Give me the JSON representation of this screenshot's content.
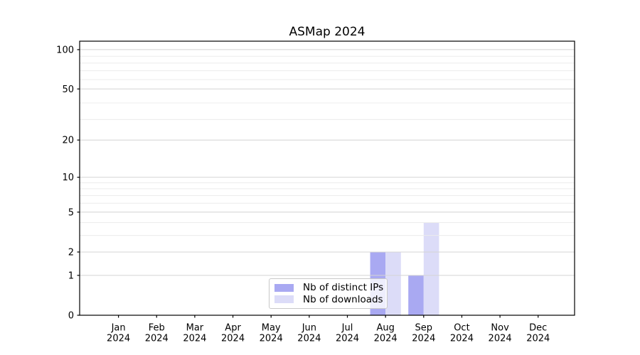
{
  "chart_data": {
    "type": "bar",
    "title": "ASMap 2024",
    "categories": [
      "Jan",
      "Feb",
      "Mar",
      "Apr",
      "May",
      "Jun",
      "Jul",
      "Aug",
      "Sep",
      "Oct",
      "Nov",
      "Dec"
    ],
    "category_year": "2024",
    "series": [
      {
        "name": "Nb of distinct IPs",
        "color": "#a9a9f2",
        "values": [
          0,
          0,
          0,
          0,
          0,
          0,
          0,
          2,
          1,
          0,
          0,
          0
        ]
      },
      {
        "name": "Nb of downloads",
        "color": "#dcdcf8",
        "values": [
          0,
          0,
          0,
          0,
          0,
          0,
          0,
          2,
          4,
          0,
          0,
          0
        ]
      }
    ],
    "yscale": "log1p",
    "ylim": [
      0,
      116
    ],
    "yticks": [
      0,
      1,
      2,
      5,
      10,
      20,
      50,
      100
    ],
    "yticks_minor": [
      3,
      4,
      6,
      7,
      8,
      9,
      29,
      39,
      59,
      69,
      79,
      89
    ],
    "xlabel": "",
    "ylabel": "",
    "grid": "horizontal",
    "legend_position": "lower-center",
    "colors": {
      "grid_major": "#d4d4d4",
      "grid_minor": "#ececec",
      "axis": "#000000",
      "tick_text": "#000000",
      "legend_border": "#c8c8c8",
      "background": "#ffffff"
    }
  }
}
